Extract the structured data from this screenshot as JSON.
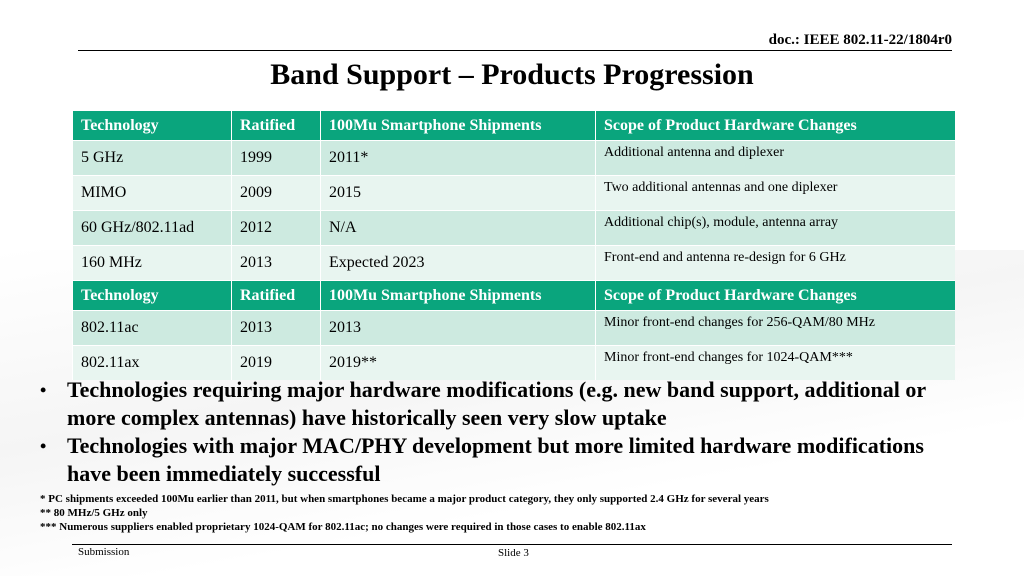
{
  "header": {
    "doc_id": "doc.: IEEE 802.11-22/1804r0",
    "title": "Band Support – Products Progression"
  },
  "table": {
    "header1": [
      "Technology",
      "Ratified",
      "100Mu Smartphone Shipments",
      "Scope of Product Hardware Changes"
    ],
    "group1": [
      [
        "5 GHz",
        "1999",
        "2011*",
        "Additional antenna and diplexer"
      ],
      [
        "MIMO",
        "2009",
        "2015",
        "Two additional antennas and one diplexer"
      ],
      [
        "60 GHz/802.11ad",
        "2012",
        "N/A",
        "Additional chip(s), module, antenna array"
      ],
      [
        "160 MHz",
        "2013",
        "Expected 2023",
        "Front-end and antenna re-design for 6 GHz"
      ]
    ],
    "header2": [
      "Technology",
      "Ratified",
      "100Mu Smartphone Shipments",
      "Scope of Product Hardware Changes"
    ],
    "group2": [
      [
        "802.11ac",
        "2013",
        "2013",
        "Minor front-end changes for 256-QAM/80 MHz"
      ],
      [
        "802.11ax",
        "2019",
        "2019**",
        "Minor front-end changes for 1024-QAM***"
      ]
    ],
    "colors": {
      "header_bg": "#0aa57d",
      "row_dark": "#cdeae0",
      "row_light": "#e8f5f0"
    }
  },
  "bullets": [
    {
      "marker": "•",
      "text": "Technologies requiring major hardware modifications (e.g. new band support, additional or more complex antennas) have historically seen very slow uptake"
    },
    {
      "marker": "•",
      "text": "Technologies with major MAC/PHY development but more limited hardware modifications have been immediately successful"
    }
  ],
  "footnotes": [
    "* PC shipments exceeded 100Mu earlier than 2011, but when smartphones became a major product category, they only supported 2.4 GHz for several years",
    "** 80 MHz/5 GHz only",
    "*** Numerous suppliers enabled proprietary 1024-QAM for 802.11ac; no changes were required in those cases to enable 802.11ax"
  ],
  "footer": {
    "left": "Submission",
    "center": "Slide 3"
  }
}
